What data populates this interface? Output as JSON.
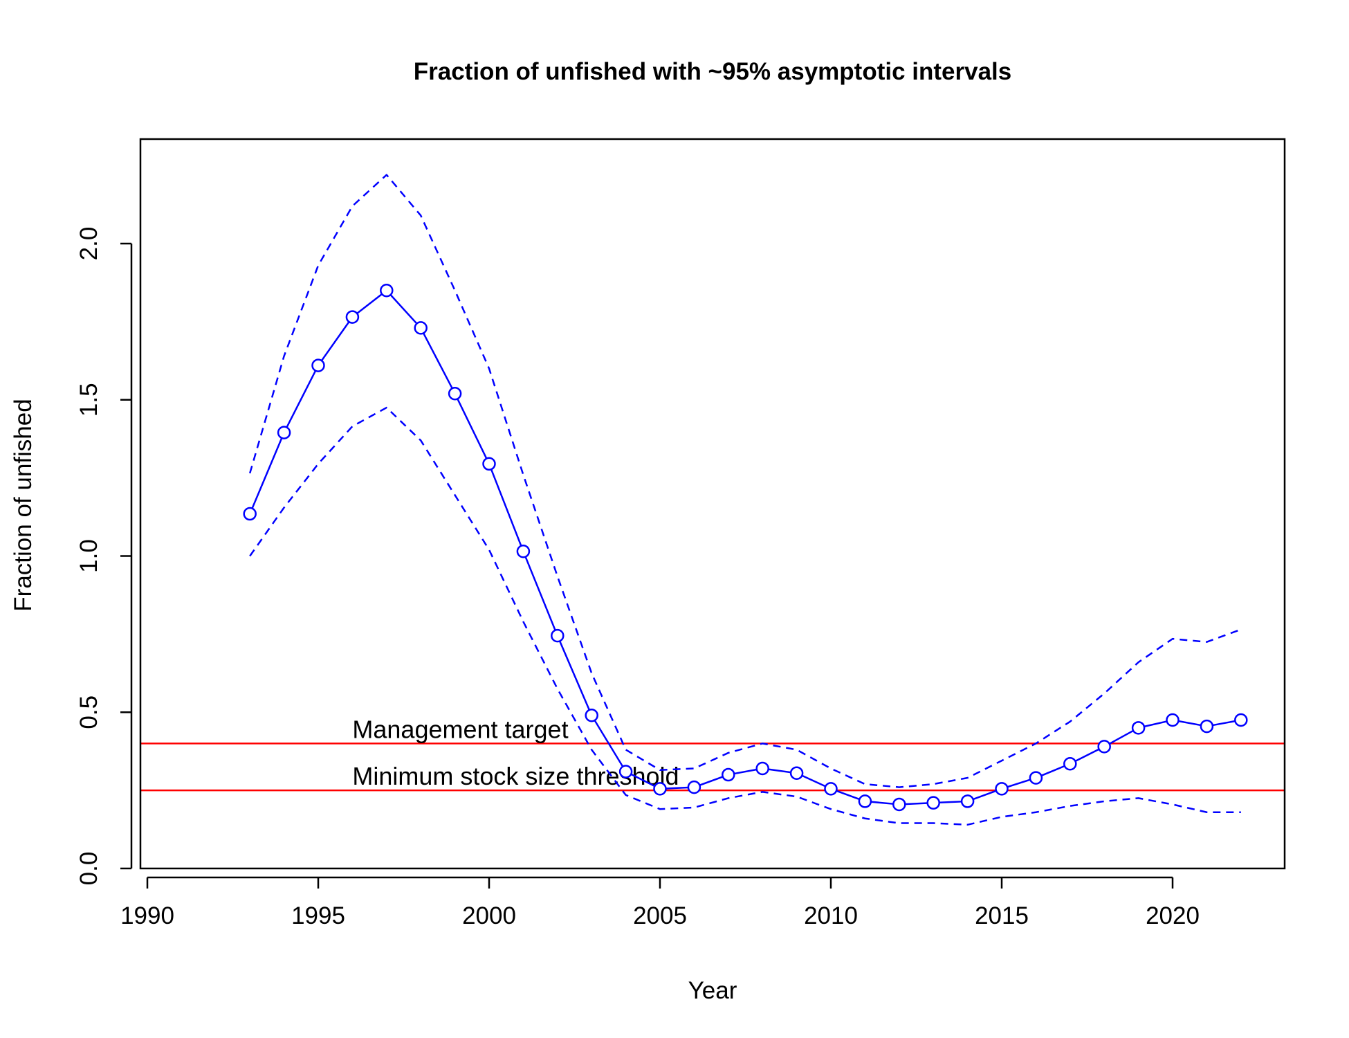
{
  "chart_data": {
    "type": "line",
    "title": "Fraction of unfished with ~95% asymptotic intervals",
    "xlabel": "Year",
    "ylabel": "Fraction of unfished",
    "xlim": [
      1989.8,
      2023.3
    ],
    "ylim": [
      0.0,
      2.33
    ],
    "x_ticks": [
      1990,
      1995,
      2000,
      2005,
      2010,
      2015,
      2020
    ],
    "x_tick_labels": [
      "1990",
      "1995",
      "2000",
      "2005",
      "2010",
      "2015",
      "2020"
    ],
    "y_ticks": [
      0.0,
      0.5,
      1.0,
      1.5,
      2.0
    ],
    "y_tick_labels": [
      "0.0",
      "0.5",
      "1.0",
      "1.5",
      "2.0"
    ],
    "grid": false,
    "x": [
      1993,
      1994,
      1995,
      1996,
      1997,
      1998,
      1999,
      2000,
      2001,
      2002,
      2003,
      2004,
      2005,
      2006,
      2007,
      2008,
      2009,
      2010,
      2011,
      2012,
      2013,
      2014,
      2015,
      2016,
      2017,
      2018,
      2019,
      2020,
      2021,
      2022
    ],
    "series": [
      {
        "role": "estimate",
        "style": "solid-with-circles",
        "color": "#0000ff",
        "values": [
          1.135,
          1.395,
          1.61,
          1.765,
          1.85,
          1.73,
          1.52,
          1.295,
          1.015,
          0.745,
          0.49,
          0.31,
          0.255,
          0.26,
          0.3,
          0.32,
          0.305,
          0.255,
          0.215,
          0.205,
          0.21,
          0.215,
          0.255,
          0.29,
          0.335,
          0.39,
          0.45,
          0.475,
          0.455,
          0.475
        ]
      },
      {
        "role": "upper-95-interval",
        "style": "dashed",
        "color": "#0000ff",
        "values": [
          1.265,
          1.64,
          1.93,
          2.12,
          2.22,
          2.09,
          1.85,
          1.6,
          1.26,
          0.935,
          0.625,
          0.38,
          0.315,
          0.32,
          0.37,
          0.4,
          0.38,
          0.32,
          0.27,
          0.26,
          0.27,
          0.29,
          0.345,
          0.4,
          0.47,
          0.56,
          0.66,
          0.735,
          0.725,
          0.765
        ]
      },
      {
        "role": "lower-95-interval",
        "style": "dashed",
        "color": "#0000ff",
        "values": [
          1.0,
          1.155,
          1.295,
          1.415,
          1.475,
          1.37,
          1.195,
          1.02,
          0.79,
          0.575,
          0.38,
          0.235,
          0.19,
          0.195,
          0.225,
          0.245,
          0.23,
          0.19,
          0.16,
          0.145,
          0.145,
          0.14,
          0.165,
          0.18,
          0.2,
          0.215,
          0.225,
          0.205,
          0.18,
          0.18
        ]
      }
    ],
    "reference_lines": [
      {
        "label": "Management target",
        "y": 0.4,
        "color": "#ff0000"
      },
      {
        "label": "Minimum stock size threshold",
        "y": 0.25,
        "color": "#ff0000"
      }
    ]
  }
}
